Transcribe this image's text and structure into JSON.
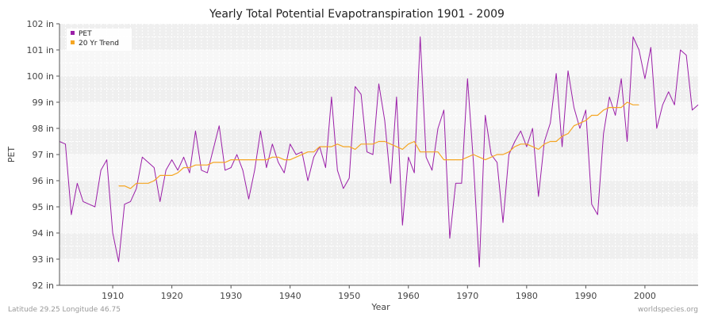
{
  "chart_data": {
    "type": "line",
    "title": "Yearly Total Potential Evapotranspiration 1901 - 2009",
    "xlabel": "Year",
    "ylabel": "PET",
    "xlim": [
      1901,
      2009
    ],
    "ylim": [
      92,
      102
    ],
    "x_ticks": [
      1910,
      1920,
      1930,
      1940,
      1950,
      1960,
      1970,
      1980,
      1990,
      2000
    ],
    "y_ticks": [
      {
        "value": 92,
        "label": "92 in"
      },
      {
        "value": 93,
        "label": "93 in"
      },
      {
        "value": 94,
        "label": "94 in"
      },
      {
        "value": 95,
        "label": "95 in"
      },
      {
        "value": 96,
        "label": "96 in"
      },
      {
        "value": 97,
        "label": "97 in"
      },
      {
        "value": 98,
        "label": "98 in"
      },
      {
        "value": 99,
        "label": "99 in"
      },
      {
        "value": 100,
        "label": "100 in"
      },
      {
        "value": 101,
        "label": "101 in"
      },
      {
        "value": 102,
        "label": "102 in"
      }
    ],
    "grid": true,
    "legend_position": "top-left",
    "series": [
      {
        "name": "PET",
        "color": "#9b1fa8",
        "x": [
          1901,
          1902,
          1903,
          1904,
          1905,
          1906,
          1907,
          1908,
          1909,
          1910,
          1911,
          1912,
          1913,
          1914,
          1915,
          1916,
          1917,
          1918,
          1919,
          1920,
          1921,
          1922,
          1923,
          1924,
          1925,
          1926,
          1927,
          1928,
          1929,
          1930,
          1931,
          1932,
          1933,
          1934,
          1935,
          1936,
          1937,
          1938,
          1939,
          1940,
          1941,
          1942,
          1943,
          1944,
          1945,
          1946,
          1947,
          1948,
          1949,
          1950,
          1951,
          1952,
          1953,
          1954,
          1955,
          1956,
          1957,
          1958,
          1959,
          1960,
          1961,
          1962,
          1963,
          1964,
          1965,
          1966,
          1967,
          1968,
          1969,
          1970,
          1971,
          1972,
          1973,
          1974,
          1975,
          1976,
          1977,
          1978,
          1979,
          1980,
          1981,
          1982,
          1983,
          1984,
          1985,
          1986,
          1987,
          1988,
          1989,
          1990,
          1991,
          1992,
          1993,
          1994,
          1995,
          1996,
          1997,
          1998,
          1999,
          2000,
          2001,
          2002,
          2003,
          2004,
          2005,
          2006,
          2007,
          2008,
          2009
        ],
        "values": [
          97.5,
          97.4,
          94.7,
          95.9,
          95.2,
          95.1,
          95.0,
          96.4,
          96.8,
          94.0,
          92.9,
          95.1,
          95.2,
          95.7,
          96.9,
          96.7,
          96.5,
          95.2,
          96.4,
          96.8,
          96.4,
          96.9,
          96.3,
          97.9,
          96.4,
          96.3,
          97.2,
          98.1,
          96.4,
          96.5,
          97.0,
          96.4,
          95.3,
          96.4,
          97.9,
          96.5,
          97.4,
          96.7,
          96.3,
          97.4,
          97.0,
          97.1,
          96.0,
          96.9,
          97.3,
          96.5,
          99.2,
          96.4,
          95.7,
          96.1,
          99.6,
          99.3,
          97.1,
          97.0,
          99.7,
          98.3,
          95.9,
          99.2,
          94.3,
          96.9,
          96.3,
          101.5,
          96.9,
          96.4,
          98.0,
          98.7,
          93.8,
          95.9,
          95.9,
          99.9,
          96.7,
          92.7,
          98.5,
          97.0,
          96.7,
          94.4,
          97.0,
          97.5,
          97.9,
          97.3,
          98.0,
          95.4,
          97.5,
          98.2,
          100.1,
          97.3,
          100.2,
          98.8,
          98.0,
          98.7,
          95.1,
          94.7,
          97.8,
          99.2,
          98.5,
          99.9,
          97.5,
          101.5,
          101.0,
          99.9,
          101.1,
          98.0,
          98.9,
          99.4,
          98.9,
          101.0,
          100.8,
          98.7,
          98.9
        ]
      },
      {
        "name": "20 Yr Trend",
        "color": "#f5a623",
        "x": [
          1911,
          1912,
          1913,
          1914,
          1915,
          1916,
          1917,
          1918,
          1919,
          1920,
          1921,
          1922,
          1923,
          1924,
          1925,
          1926,
          1927,
          1928,
          1929,
          1930,
          1931,
          1932,
          1933,
          1934,
          1935,
          1936,
          1937,
          1938,
          1939,
          1940,
          1941,
          1942,
          1943,
          1944,
          1945,
          1946,
          1947,
          1948,
          1949,
          1950,
          1951,
          1952,
          1953,
          1954,
          1955,
          1956,
          1957,
          1958,
          1959,
          1960,
          1961,
          1962,
          1963,
          1964,
          1965,
          1966,
          1967,
          1968,
          1969,
          1970,
          1971,
          1972,
          1973,
          1974,
          1975,
          1976,
          1977,
          1978,
          1979,
          1980,
          1981,
          1982,
          1983,
          1984,
          1985,
          1986,
          1987,
          1988,
          1989,
          1990,
          1991,
          1992,
          1993,
          1994,
          1995,
          1996,
          1997,
          1998,
          1999
        ],
        "values": [
          95.8,
          95.8,
          95.7,
          95.9,
          95.9,
          95.9,
          96.0,
          96.2,
          96.2,
          96.2,
          96.3,
          96.5,
          96.5,
          96.6,
          96.6,
          96.6,
          96.7,
          96.7,
          96.7,
          96.8,
          96.8,
          96.8,
          96.8,
          96.8,
          96.8,
          96.8,
          96.9,
          96.9,
          96.8,
          96.8,
          96.9,
          97.0,
          97.1,
          97.1,
          97.3,
          97.3,
          97.3,
          97.4,
          97.3,
          97.3,
          97.2,
          97.4,
          97.4,
          97.4,
          97.5,
          97.5,
          97.4,
          97.3,
          97.2,
          97.4,
          97.5,
          97.1,
          97.1,
          97.1,
          97.1,
          96.8,
          96.8,
          96.8,
          96.8,
          96.9,
          97.0,
          96.9,
          96.8,
          96.9,
          97.0,
          97.0,
          97.1,
          97.3,
          97.4,
          97.4,
          97.3,
          97.2,
          97.4,
          97.5,
          97.5,
          97.7,
          97.8,
          98.1,
          98.2,
          98.3,
          98.5,
          98.5,
          98.7,
          98.8,
          98.8,
          98.8,
          99.0,
          98.9,
          98.9
        ]
      }
    ]
  },
  "footer": {
    "left": "Latitude 29.25 Longitude 46.75",
    "right": "worldspecies.org"
  }
}
